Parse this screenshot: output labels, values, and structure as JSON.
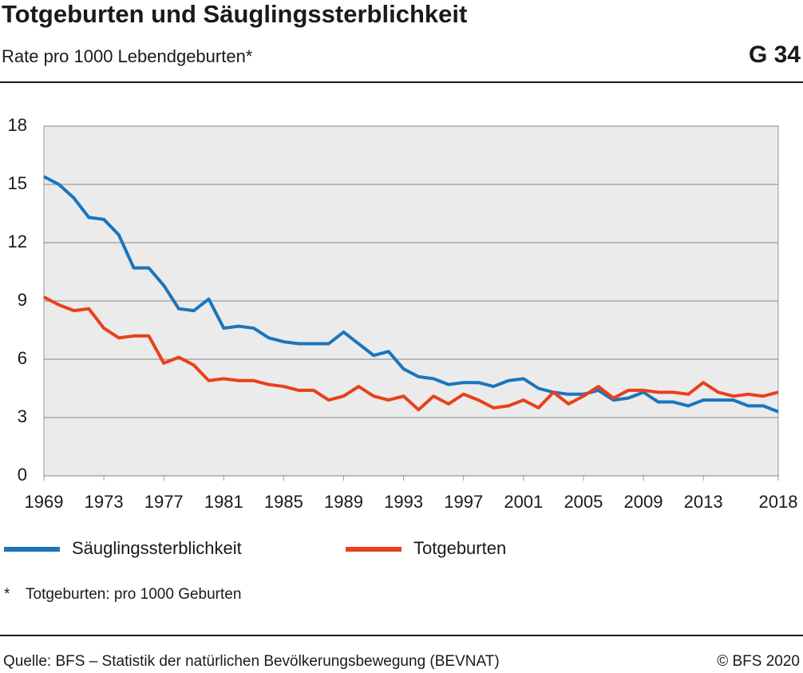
{
  "chart_data": {
    "type": "line",
    "title": "Totgeburten und Säuglingssterblichkeit",
    "subtitle": "Rate pro 1000 Lebendgeburten*",
    "chart_id": "G 34",
    "x": [
      1969,
      1970,
      1971,
      1972,
      1973,
      1974,
      1975,
      1976,
      1977,
      1978,
      1979,
      1980,
      1981,
      1982,
      1983,
      1984,
      1985,
      1986,
      1987,
      1988,
      1989,
      1990,
      1991,
      1992,
      1993,
      1994,
      1995,
      1996,
      1997,
      1998,
      1999,
      2000,
      2001,
      2002,
      2003,
      2004,
      2005,
      2006,
      2007,
      2008,
      2009,
      2010,
      2011,
      2012,
      2013,
      2014,
      2015,
      2016,
      2017,
      2018
    ],
    "series": [
      {
        "name": "Säuglingssterblichkeit",
        "color": "#1b75bc",
        "values": [
          15.4,
          15.0,
          14.3,
          13.3,
          13.2,
          12.4,
          10.7,
          10.7,
          9.8,
          8.6,
          8.5,
          9.1,
          7.6,
          7.7,
          7.6,
          7.1,
          6.9,
          6.8,
          6.8,
          6.8,
          7.4,
          6.8,
          6.2,
          6.4,
          5.5,
          5.1,
          5.0,
          4.7,
          4.8,
          4.8,
          4.6,
          4.9,
          5.0,
          4.5,
          4.3,
          4.2,
          4.2,
          4.4,
          3.9,
          4.0,
          4.3,
          3.8,
          3.8,
          3.6,
          3.9,
          3.9,
          3.9,
          3.6,
          3.6,
          3.3
        ]
      },
      {
        "name": "Totgeburten",
        "color": "#e8401c",
        "values": [
          9.2,
          8.8,
          8.5,
          8.6,
          7.6,
          7.1,
          7.2,
          7.2,
          5.8,
          6.1,
          5.7,
          4.9,
          5.0,
          4.9,
          4.9,
          4.7,
          4.6,
          4.4,
          4.4,
          3.9,
          4.1,
          4.6,
          4.1,
          3.9,
          4.1,
          3.4,
          4.1,
          3.7,
          4.2,
          3.9,
          3.5,
          3.6,
          3.9,
          3.5,
          4.3,
          3.7,
          4.1,
          4.6,
          4.0,
          4.4,
          4.4,
          4.3,
          4.3,
          4.2,
          4.8,
          4.3,
          4.1,
          4.2,
          4.1,
          4.3
        ]
      }
    ],
    "xlim": [
      1969,
      2018
    ],
    "xticks": [
      1969,
      1973,
      1977,
      1981,
      1985,
      1989,
      1993,
      1997,
      2001,
      2005,
      2009,
      2013,
      2018
    ],
    "ylim": [
      0,
      18
    ],
    "yticks": [
      0,
      3,
      6,
      9,
      12,
      15,
      18
    ],
    "grid": true,
    "legend": "bottom",
    "footnote": {
      "marker": "*",
      "text": "Totgeburten: pro 1000 Geburten"
    },
    "source": "Quelle: BFS – Statistik der natürlichen Bevölkerungsbewegung (BEVNAT)",
    "copyright": "© BFS 2020"
  }
}
